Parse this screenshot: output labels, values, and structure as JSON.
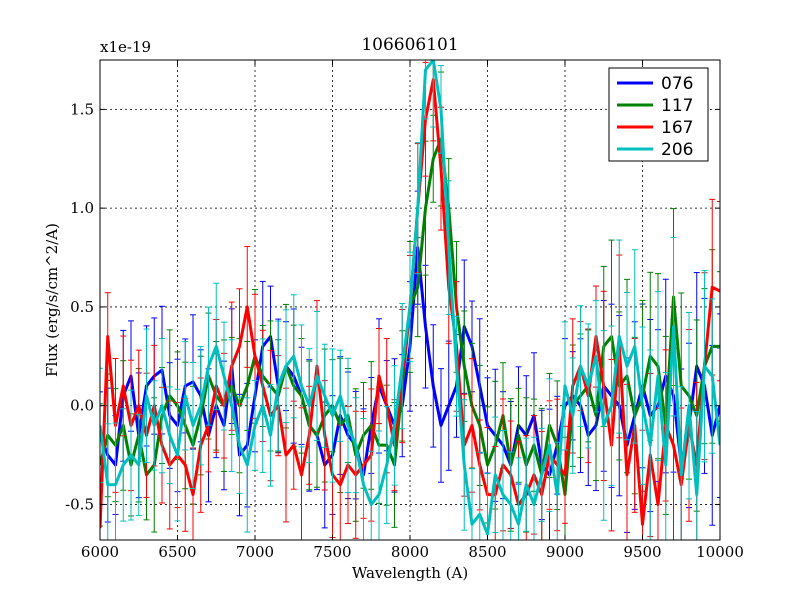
{
  "chart_data": {
    "type": "line",
    "title": "106606101",
    "xlabel": "Wavelength (A)",
    "ylabel": "Flux (erg/s/cm^2/A)",
    "y_multiplier_label": "x1e-19",
    "xlim": [
      6000,
      10000
    ],
    "ylim": [
      -0.68,
      1.75
    ],
    "x_ticks": [
      6000,
      6500,
      7000,
      7500,
      8000,
      8500,
      9000,
      9500,
      10000
    ],
    "x_tick_labels": [
      "6000",
      "6500",
      "7000",
      "7500",
      "8000",
      "8500",
      "9000",
      "9500",
      "10000"
    ],
    "y_ticks": [
      -0.5,
      0.0,
      0.5,
      1.0,
      1.5
    ],
    "y_tick_labels": [
      "-0.5",
      "0.0",
      "0.5",
      "1.0",
      "1.5"
    ],
    "grid": true,
    "legend_position": "top-right",
    "x": [
      6000,
      6050,
      6100,
      6150,
      6200,
      6250,
      6300,
      6350,
      6400,
      6450,
      6500,
      6550,
      6600,
      6650,
      6700,
      6750,
      6800,
      6850,
      6900,
      6950,
      7000,
      7050,
      7100,
      7150,
      7200,
      7250,
      7300,
      7350,
      7400,
      7450,
      7500,
      7550,
      7600,
      7650,
      7700,
      7750,
      7800,
      7850,
      7900,
      7950,
      8000,
      8050,
      8100,
      8150,
      8200,
      8250,
      8300,
      8350,
      8400,
      8450,
      8500,
      8550,
      8600,
      8650,
      8700,
      8750,
      8800,
      8850,
      8900,
      8950,
      9000,
      9050,
      9100,
      9150,
      9200,
      9250,
      9300,
      9350,
      9400,
      9450,
      9500,
      9550,
      9600,
      9650,
      9700,
      9750,
      9800,
      9850,
      9900,
      9950,
      10000
    ],
    "series": [
      {
        "name": "076",
        "color": "#0000ff",
        "values": [
          -0.15,
          -0.25,
          -0.3,
          0.05,
          0.15,
          -0.15,
          0.1,
          0.15,
          0.18,
          -0.05,
          -0.1,
          0.1,
          0.12,
          0.05,
          -0.15,
          0.0,
          -0.1,
          0.2,
          -0.25,
          -0.2,
          0.05,
          0.3,
          0.35,
          0.1,
          0.2,
          0.15,
          0.05,
          -0.1,
          -0.15,
          -0.3,
          -0.25,
          -0.05,
          -0.15,
          -0.2,
          -0.35,
          -0.1,
          0.1,
          0.0,
          -0.1,
          0.0,
          0.3,
          0.8,
          0.4,
          0.1,
          -0.1,
          0.0,
          0.1,
          0.4,
          0.3,
          0.1,
          -0.1,
          -0.15,
          -0.2,
          -0.3,
          -0.1,
          -0.15,
          -0.05,
          -0.3,
          -0.35,
          -0.2,
          0.0,
          0.05,
          0.0,
          -0.15,
          -0.1,
          0.1,
          0.05,
          0.0,
          -0.2,
          -0.05,
          0.1,
          -0.05,
          0.0,
          0.15,
          0.05,
          -0.3,
          -0.1,
          0.2,
          0.1,
          -0.15,
          0.0
        ]
      },
      {
        "name": "117",
        "color": "#008000",
        "values": [
          -0.3,
          -0.15,
          -0.2,
          -0.1,
          -0.3,
          -0.15,
          -0.35,
          -0.3,
          -0.05,
          0.05,
          0.0,
          -0.1,
          -0.2,
          -0.05,
          0.15,
          0.05,
          0.0,
          0.1,
          0.0,
          0.1,
          0.25,
          0.15,
          0.1,
          0.05,
          0.2,
          0.1,
          0.05,
          -0.1,
          -0.15,
          -0.05,
          0.0,
          -0.1,
          -0.05,
          -0.25,
          -0.15,
          -0.1,
          -0.2,
          -0.2,
          -0.3,
          0.1,
          0.5,
          0.6,
          1.0,
          1.25,
          1.35,
          1.0,
          0.5,
          0.2,
          0.0,
          -0.1,
          -0.3,
          -0.2,
          -0.05,
          -0.3,
          -0.15,
          -0.3,
          -0.2,
          -0.35,
          -0.1,
          -0.2,
          -0.45,
          0.0,
          0.05,
          0.1,
          -0.05,
          0.3,
          0.35,
          0.1,
          0.15,
          -0.05,
          0.05,
          0.25,
          0.2,
          -0.1,
          0.55,
          0.1,
          0.05,
          -0.05,
          0.2,
          0.3,
          0.3
        ]
      },
      {
        "name": "167",
        "color": "#ff0000",
        "values": [
          -0.62,
          0.35,
          -0.1,
          0.1,
          -0.1,
          0.0,
          -0.15,
          0.0,
          -0.2,
          -0.3,
          -0.25,
          -0.3,
          -0.45,
          -0.2,
          -0.1,
          0.1,
          0.0,
          0.2,
          0.3,
          0.5,
          0.25,
          0.1,
          -0.05,
          0.0,
          -0.25,
          -0.2,
          -0.35,
          -0.15,
          0.2,
          -0.15,
          -0.35,
          -0.4,
          -0.3,
          -0.35,
          -0.3,
          -0.25,
          0.15,
          0.0,
          -0.2,
          0.15,
          0.5,
          1.0,
          1.45,
          1.65,
          1.2,
          0.6,
          0.3,
          -0.2,
          -0.1,
          -0.3,
          -0.45,
          -0.45,
          -0.3,
          -0.35,
          -0.5,
          -0.45,
          -0.35,
          -0.45,
          -0.25,
          -0.3,
          -0.35,
          0.1,
          0.2,
          0.05,
          0.35,
          0.1,
          -0.2,
          0.3,
          -0.35,
          -0.1,
          -0.6,
          -0.25,
          -0.5,
          -0.1,
          -0.2,
          -0.4,
          -0.1,
          -0.3,
          0.2,
          0.6,
          0.58
        ]
      },
      {
        "name": "206",
        "color": "#00bfbf",
        "values": [
          -0.1,
          -0.4,
          -0.4,
          -0.3,
          -0.25,
          -0.3,
          0.05,
          -0.1,
          0.0,
          -0.15,
          -0.25,
          0.05,
          -0.1,
          0.0,
          0.2,
          0.3,
          0.15,
          0.0,
          -0.2,
          -0.3,
          -0.1,
          0.0,
          -0.15,
          0.1,
          0.2,
          0.25,
          0.1,
          0.0,
          0.15,
          0.05,
          -0.05,
          0.05,
          -0.1,
          -0.2,
          -0.4,
          -0.5,
          -0.45,
          -0.3,
          -0.1,
          0.2,
          0.5,
          1.0,
          1.7,
          1.75,
          1.5,
          0.8,
          0.2,
          -0.3,
          -0.6,
          -0.55,
          -0.65,
          -0.35,
          -0.45,
          -0.5,
          -0.6,
          -0.4,
          -0.5,
          -0.35,
          -0.2,
          -0.45,
          0.1,
          -0.05,
          0.2,
          0.1,
          0.25,
          -0.1,
          0.0,
          0.35,
          0.2,
          0.3,
          0.0,
          -0.2,
          0.15,
          -0.3,
          0.4,
          -0.35,
          0.0,
          -0.45,
          0.2,
          0.15,
          -0.2
        ]
      }
    ]
  }
}
